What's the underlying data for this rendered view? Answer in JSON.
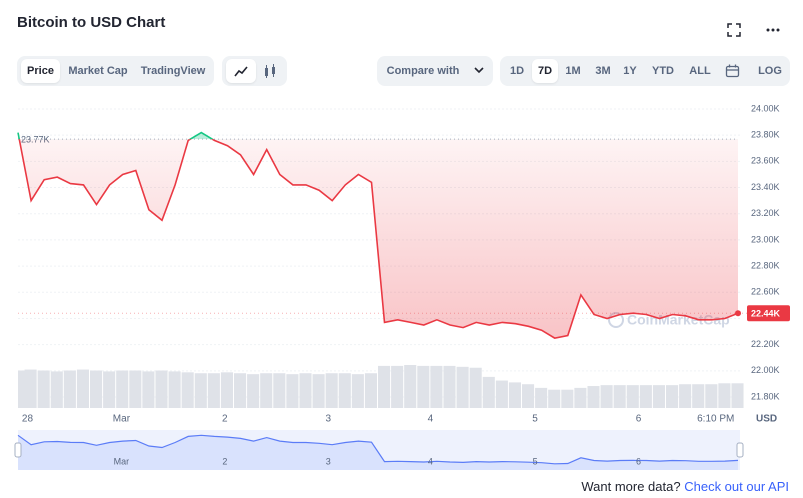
{
  "chart_data": {
    "type": "line",
    "title": "Bitcoin to USD Chart",
    "values": [
      23820,
      23300,
      23460,
      23480,
      23430,
      23420,
      23270,
      23420,
      23500,
      23530,
      23230,
      23150,
      23420,
      23760,
      23820,
      23760,
      23720,
      23650,
      23500,
      23690,
      23500,
      23420,
      23420,
      23380,
      23300,
      23420,
      23500,
      23440,
      22370,
      22390,
      22370,
      22350,
      22390,
      22350,
      22330,
      22370,
      22350,
      22370,
      22360,
      22340,
      22310,
      22250,
      22270,
      22580,
      22430,
      22400,
      22430,
      22440,
      22430,
      22400,
      22430,
      22420,
      22390,
      22390,
      22400,
      22440
    ],
    "volume": [
      41,
      42,
      41,
      40,
      41,
      42,
      41,
      40,
      41,
      41,
      40,
      41,
      40,
      39,
      38,
      38,
      39,
      38,
      37,
      38,
      38,
      37,
      38,
      37,
      38,
      38,
      37,
      38,
      46,
      46,
      47,
      46,
      46,
      46,
      45,
      44,
      34,
      30,
      28,
      26,
      22,
      20,
      20,
      22,
      24,
      25,
      25,
      25,
      25,
      25,
      25,
      26,
      26,
      26,
      27,
      27
    ],
    "up_color": "#16c784",
    "down_color": "#ea3943",
    "volume_color": "#dfe2e8",
    "navigator_color": "#5b7cf7",
    "xlim": [
      0,
      55
    ],
    "xticks": [
      {
        "value": 0.3,
        "label": "28"
      },
      {
        "value": 7.9,
        "label": "Mar"
      },
      {
        "value": 15.8,
        "label": "2"
      },
      {
        "value": 23.7,
        "label": "3"
      },
      {
        "value": 31.5,
        "label": "4"
      },
      {
        "value": 39.5,
        "label": "5"
      },
      {
        "value": 47.4,
        "label": "6"
      },
      {
        "value": 53.3,
        "label": "6:10 PM"
      }
    ],
    "ylim": [
      21800,
      24000
    ],
    "yticks": [
      {
        "value": 21800,
        "label": "21.80K"
      },
      {
        "value": 22000,
        "label": "22.00K"
      },
      {
        "value": 22200,
        "label": "22.20K"
      },
      {
        "value": 22400,
        "label": "22.40K"
      },
      {
        "value": 22600,
        "label": "22.60K"
      },
      {
        "value": 22800,
        "label": "22.80K"
      },
      {
        "value": 23000,
        "label": "23.00K"
      },
      {
        "value": 23200,
        "label": "23.20K"
      },
      {
        "value": 23400,
        "label": "23.40K"
      },
      {
        "value": 23600,
        "label": "23.60K"
      },
      {
        "value": 23800,
        "label": "23.80K"
      },
      {
        "value": 24000,
        "label": "24.00K"
      }
    ],
    "grid": true,
    "annotations": [
      {
        "value": 23770,
        "label": "23.77K"
      }
    ],
    "last_price": {
      "value": 22440,
      "label": "22.44K"
    },
    "currency": "USD",
    "watermark": "CoinMarketCap"
  },
  "controls": {
    "views": [
      {
        "label": "Price",
        "selected": true
      },
      {
        "label": "Market Cap"
      },
      {
        "label": "TradingView"
      }
    ],
    "compare": "Compare with",
    "ranges": [
      {
        "label": "1D"
      },
      {
        "label": "7D",
        "selected": true
      },
      {
        "label": "1M"
      },
      {
        "label": "3M"
      },
      {
        "label": "1Y"
      },
      {
        "label": "YTD"
      },
      {
        "label": "ALL"
      }
    ],
    "log": "LOG"
  },
  "footer": {
    "text": "Want more data?",
    "link": "Check out our API"
  }
}
